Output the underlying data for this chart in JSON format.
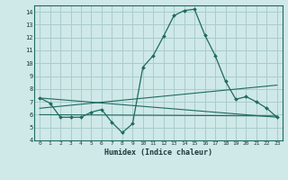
{
  "xlabel": "Humidex (Indice chaleur)",
  "background_color": "#cfe8e8",
  "grid_color": "#aacccc",
  "line_color": "#1e6b5e",
  "xlim": [
    -0.5,
    23.5
  ],
  "ylim": [
    4,
    14.5
  ],
  "xticks": [
    0,
    1,
    2,
    3,
    4,
    5,
    6,
    7,
    8,
    9,
    10,
    11,
    12,
    13,
    14,
    15,
    16,
    17,
    18,
    19,
    20,
    21,
    22,
    23
  ],
  "yticks": [
    4,
    5,
    6,
    7,
    8,
    9,
    10,
    11,
    12,
    13,
    14
  ],
  "line1_x": [
    0,
    1,
    2,
    3,
    4,
    5,
    6,
    7,
    8,
    9,
    10,
    11,
    12,
    13,
    14,
    15,
    16,
    17,
    18,
    19,
    20,
    21,
    22,
    23
  ],
  "line1_y": [
    7.3,
    6.9,
    5.8,
    5.8,
    5.8,
    6.2,
    6.4,
    5.4,
    4.6,
    5.3,
    9.7,
    10.6,
    12.1,
    13.7,
    14.1,
    14.2,
    12.2,
    10.6,
    8.6,
    7.2,
    7.4,
    7.0,
    6.5,
    5.8
  ],
  "line2_x": [
    0,
    23
  ],
  "line2_y": [
    7.3,
    5.8
  ],
  "line3_x": [
    0,
    23
  ],
  "line3_y": [
    6.5,
    8.3
  ],
  "line4_x": [
    0,
    23
  ],
  "line4_y": [
    6.0,
    5.9
  ]
}
